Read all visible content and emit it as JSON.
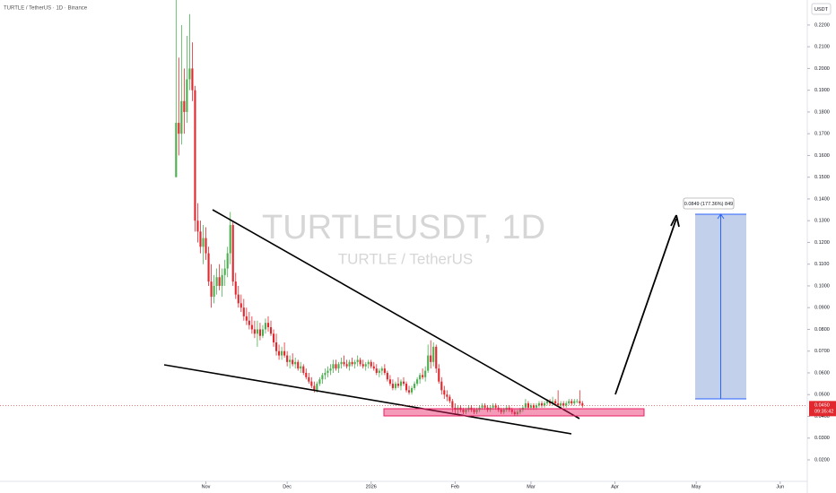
{
  "chart_data": {
    "type": "candlestick",
    "header": "TURTLE / TetherUS · 1D · Binance",
    "currency": "USDT",
    "watermark": "TURTLEUSDT, 1D",
    "watermark_subtitle": "TURTLE / TetherUS",
    "projection_label": "0.0849 (177.36%) 849",
    "last_price": {
      "value": 0.045,
      "label": "0.0450"
    },
    "countdown": "09:35:42",
    "up_color": "#4caf50",
    "down_color": "#e0282e",
    "grid": false,
    "xlim": [
      -65,
      233
    ],
    "xticks": [
      {
        "value": 11,
        "label": "Nov"
      },
      {
        "value": 41,
        "label": "Dec"
      },
      {
        "value": 72,
        "label": "2026"
      },
      {
        "value": 103,
        "label": "Feb"
      },
      {
        "value": 131,
        "label": "Mar"
      },
      {
        "value": 162,
        "label": "Apr"
      },
      {
        "value": 192,
        "label": "May"
      },
      {
        "value": 223,
        "label": "Jun"
      }
    ],
    "ylim": [
      0.0101,
      0.2315
    ],
    "yticks": [
      {
        "value": 0.02,
        "label": "0.0200"
      },
      {
        "value": 0.03,
        "label": "0.0300"
      },
      {
        "value": 0.04,
        "label": "0.0400"
      },
      {
        "value": 0.05,
        "label": "0.0500"
      },
      {
        "value": 0.06,
        "label": "0.0600"
      },
      {
        "value": 0.07,
        "label": "0.0700"
      },
      {
        "value": 0.08,
        "label": "0.0800"
      },
      {
        "value": 0.09,
        "label": "0.0900"
      },
      {
        "value": 0.1,
        "label": "0.1000"
      },
      {
        "value": 0.11,
        "label": "0.1100"
      },
      {
        "value": 0.12,
        "label": "0.1200"
      },
      {
        "value": 0.13,
        "label": "0.1300"
      },
      {
        "value": 0.14,
        "label": "0.1400"
      },
      {
        "value": 0.15,
        "label": "0.1500"
      },
      {
        "value": 0.16,
        "label": "0.1600"
      },
      {
        "value": 0.17,
        "label": "0.1700"
      },
      {
        "value": 0.18,
        "label": "0.1800"
      },
      {
        "value": 0.19,
        "label": "0.1900"
      },
      {
        "value": 0.2,
        "label": "0.2000"
      },
      {
        "value": 0.21,
        "label": "0.2100"
      },
      {
        "value": 0.22,
        "label": "0.2200"
      }
    ],
    "open": [
      0.15,
      0.175,
      0.17,
      0.185,
      0.18,
      0.195,
      0.2,
      0.19,
      0.13,
      0.125,
      0.118,
      0.122,
      0.115,
      0.102,
      0.095,
      0.1,
      0.104,
      0.1,
      0.105,
      0.108,
      0.115,
      0.128,
      0.102,
      0.096,
      0.092,
      0.09,
      0.086,
      0.084,
      0.082,
      0.08,
      0.078,
      0.08,
      0.077,
      0.08,
      0.083,
      0.081,
      0.078,
      0.074,
      0.07,
      0.068,
      0.07,
      0.068,
      0.065,
      0.066,
      0.064,
      0.065,
      0.062,
      0.063,
      0.06,
      0.058,
      0.056,
      0.054,
      0.052,
      0.055,
      0.057,
      0.059,
      0.06,
      0.061,
      0.062,
      0.064,
      0.062,
      0.064,
      0.065,
      0.064,
      0.063,
      0.065,
      0.064,
      0.065,
      0.066,
      0.064,
      0.063,
      0.064,
      0.065,
      0.063,
      0.062,
      0.06,
      0.061,
      0.062,
      0.06,
      0.057,
      0.055,
      0.053,
      0.055,
      0.054,
      0.056,
      0.055,
      0.052,
      0.051,
      0.053,
      0.055,
      0.057,
      0.059,
      0.058,
      0.061,
      0.068,
      0.065,
      0.072,
      0.062,
      0.056,
      0.052,
      0.05,
      0.049,
      0.047,
      0.044,
      0.043,
      0.044,
      0.043,
      0.042,
      0.043,
      0.044,
      0.043,
      0.042,
      0.043,
      0.044,
      0.045,
      0.044,
      0.043,
      0.044,
      0.045,
      0.044,
      0.043,
      0.042,
      0.043,
      0.044,
      0.043,
      0.042,
      0.041,
      0.042,
      0.043,
      0.044,
      0.046,
      0.044,
      0.045,
      0.044,
      0.045,
      0.046,
      0.045,
      0.046,
      0.047,
      0.046,
      0.047,
      0.046,
      0.045,
      0.046,
      0.045,
      0.046,
      0.047,
      0.046,
      0.047,
      0.047,
      0.046
    ],
    "high": [
      0.232,
      0.205,
      0.22,
      0.2,
      0.215,
      0.225,
      0.212,
      0.192,
      0.138,
      0.13,
      0.128,
      0.127,
      0.118,
      0.11,
      0.105,
      0.108,
      0.11,
      0.108,
      0.112,
      0.118,
      0.134,
      0.13,
      0.106,
      0.1,
      0.096,
      0.094,
      0.09,
      0.088,
      0.086,
      0.084,
      0.084,
      0.083,
      0.082,
      0.085,
      0.086,
      0.084,
      0.08,
      0.078,
      0.073,
      0.072,
      0.074,
      0.07,
      0.068,
      0.069,
      0.067,
      0.066,
      0.065,
      0.064,
      0.062,
      0.06,
      0.058,
      0.056,
      0.056,
      0.058,
      0.06,
      0.062,
      0.063,
      0.064,
      0.066,
      0.066,
      0.065,
      0.067,
      0.068,
      0.066,
      0.066,
      0.067,
      0.066,
      0.068,
      0.067,
      0.066,
      0.065,
      0.066,
      0.066,
      0.065,
      0.064,
      0.062,
      0.063,
      0.064,
      0.061,
      0.059,
      0.057,
      0.056,
      0.058,
      0.057,
      0.058,
      0.056,
      0.054,
      0.054,
      0.056,
      0.058,
      0.06,
      0.062,
      0.063,
      0.073,
      0.075,
      0.074,
      0.073,
      0.064,
      0.058,
      0.054,
      0.052,
      0.05,
      0.048,
      0.046,
      0.045,
      0.045,
      0.044,
      0.044,
      0.045,
      0.045,
      0.044,
      0.044,
      0.045,
      0.046,
      0.046,
      0.045,
      0.045,
      0.046,
      0.046,
      0.045,
      0.044,
      0.044,
      0.045,
      0.045,
      0.044,
      0.043,
      0.043,
      0.044,
      0.045,
      0.048,
      0.047,
      0.046,
      0.046,
      0.046,
      0.047,
      0.047,
      0.047,
      0.048,
      0.048,
      0.049,
      0.048,
      0.052,
      0.047,
      0.047,
      0.047,
      0.048,
      0.048,
      0.048,
      0.048,
      0.052,
      0.047
    ],
    "low": [
      0.15,
      0.16,
      0.165,
      0.17,
      0.175,
      0.19,
      0.185,
      0.125,
      0.12,
      0.115,
      0.11,
      0.112,
      0.1,
      0.09,
      0.092,
      0.096,
      0.098,
      0.095,
      0.1,
      0.104,
      0.11,
      0.1,
      0.094,
      0.09,
      0.088,
      0.084,
      0.082,
      0.08,
      0.078,
      0.076,
      0.072,
      0.075,
      0.076,
      0.078,
      0.079,
      0.077,
      0.072,
      0.068,
      0.066,
      0.066,
      0.067,
      0.063,
      0.062,
      0.063,
      0.062,
      0.061,
      0.06,
      0.059,
      0.057,
      0.055,
      0.053,
      0.051,
      0.051,
      0.054,
      0.055,
      0.057,
      0.058,
      0.059,
      0.06,
      0.061,
      0.06,
      0.062,
      0.063,
      0.062,
      0.061,
      0.063,
      0.062,
      0.063,
      0.063,
      0.062,
      0.061,
      0.062,
      0.062,
      0.061,
      0.059,
      0.058,
      0.059,
      0.059,
      0.056,
      0.054,
      0.052,
      0.052,
      0.053,
      0.052,
      0.054,
      0.051,
      0.05,
      0.05,
      0.052,
      0.054,
      0.055,
      0.057,
      0.056,
      0.06,
      0.062,
      0.063,
      0.06,
      0.055,
      0.05,
      0.048,
      0.047,
      0.046,
      0.042,
      0.041,
      0.041,
      0.042,
      0.041,
      0.041,
      0.042,
      0.042,
      0.041,
      0.041,
      0.042,
      0.043,
      0.043,
      0.042,
      0.042,
      0.043,
      0.043,
      0.042,
      0.041,
      0.041,
      0.042,
      0.042,
      0.041,
      0.04,
      0.04,
      0.041,
      0.042,
      0.043,
      0.043,
      0.043,
      0.043,
      0.043,
      0.044,
      0.044,
      0.044,
      0.045,
      0.045,
      0.045,
      0.045,
      0.045,
      0.044,
      0.044,
      0.044,
      0.045,
      0.045,
      0.045,
      0.046,
      0.045,
      0.044
    ],
    "close": [
      0.175,
      0.17,
      0.185,
      0.18,
      0.195,
      0.2,
      0.19,
      0.13,
      0.125,
      0.118,
      0.122,
      0.115,
      0.102,
      0.095,
      0.1,
      0.104,
      0.1,
      0.105,
      0.108,
      0.115,
      0.128,
      0.102,
      0.096,
      0.092,
      0.09,
      0.086,
      0.084,
      0.082,
      0.08,
      0.078,
      0.08,
      0.077,
      0.08,
      0.083,
      0.081,
      0.078,
      0.074,
      0.07,
      0.068,
      0.07,
      0.068,
      0.065,
      0.066,
      0.064,
      0.065,
      0.062,
      0.063,
      0.06,
      0.058,
      0.056,
      0.054,
      0.052,
      0.055,
      0.057,
      0.059,
      0.06,
      0.061,
      0.062,
      0.064,
      0.062,
      0.064,
      0.065,
      0.064,
      0.063,
      0.065,
      0.064,
      0.065,
      0.066,
      0.064,
      0.063,
      0.064,
      0.065,
      0.063,
      0.062,
      0.06,
      0.061,
      0.062,
      0.06,
      0.057,
      0.055,
      0.053,
      0.055,
      0.054,
      0.056,
      0.055,
      0.052,
      0.051,
      0.053,
      0.055,
      0.057,
      0.059,
      0.058,
      0.061,
      0.068,
      0.065,
      0.072,
      0.062,
      0.056,
      0.052,
      0.05,
      0.049,
      0.047,
      0.044,
      0.043,
      0.044,
      0.043,
      0.042,
      0.043,
      0.044,
      0.043,
      0.042,
      0.043,
      0.044,
      0.045,
      0.044,
      0.043,
      0.044,
      0.045,
      0.044,
      0.043,
      0.042,
      0.043,
      0.044,
      0.043,
      0.042,
      0.041,
      0.042,
      0.043,
      0.044,
      0.046,
      0.044,
      0.045,
      0.044,
      0.045,
      0.046,
      0.045,
      0.046,
      0.047,
      0.046,
      0.047,
      0.046,
      0.045,
      0.046,
      0.045,
      0.046,
      0.047,
      0.046,
      0.047,
      0.047,
      0.046,
      0.045
    ]
  }
}
